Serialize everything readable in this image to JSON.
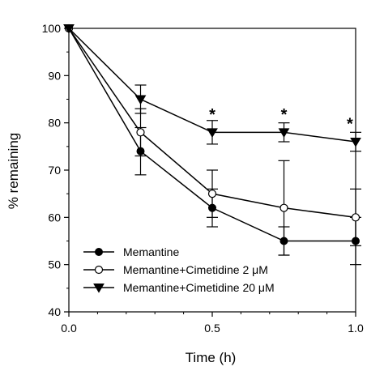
{
  "chart_data": {
    "type": "line",
    "xlabel": "Time (h)",
    "ylabel": "% remaining",
    "xlim": [
      0.0,
      1.0
    ],
    "ylim": [
      40,
      100
    ],
    "x_ticks": [
      "0.0",
      "0.5",
      "1.0"
    ],
    "y_ticks": [
      "40",
      "50",
      "60",
      "70",
      "80",
      "90",
      "100"
    ],
    "x": [
      0,
      0.25,
      0.5,
      0.75,
      1.0
    ],
    "series": [
      {
        "name": "Memantine",
        "marker": "filled-circle",
        "values": [
          100,
          74,
          62,
          55,
          55
        ],
        "err": [
          0,
          5,
          4,
          3,
          5
        ]
      },
      {
        "name": "Memantine+Cimetidine 2 μM",
        "marker": "open-circle",
        "values": [
          100,
          78,
          65,
          62,
          60
        ],
        "err": [
          0,
          5,
          5,
          10,
          6
        ]
      },
      {
        "name": "Memantine+Cimetidine 20 μM",
        "marker": "filled-triangle-down",
        "values": [
          100,
          85,
          78,
          78,
          76
        ],
        "err": [
          0,
          3,
          2.5,
          2,
          2
        ]
      }
    ],
    "annotations": [
      {
        "text": "*",
        "x": 0.5,
        "y": 82
      },
      {
        "text": "*",
        "x": 0.75,
        "y": 82
      },
      {
        "text": "*",
        "x": 0.98,
        "y": 80
      }
    ],
    "legend_position": "bottom-left",
    "grid": false
  }
}
